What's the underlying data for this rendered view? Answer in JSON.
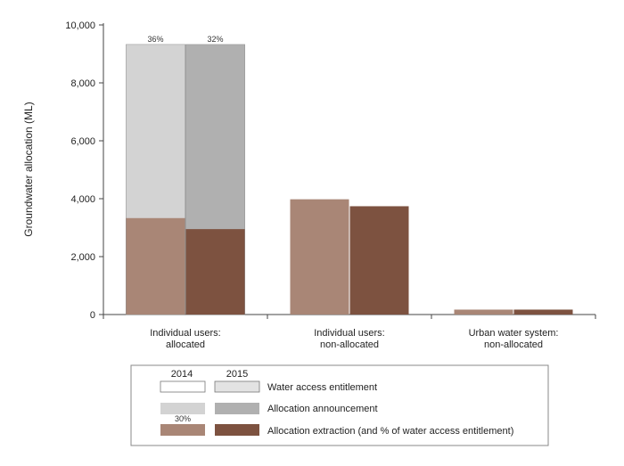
{
  "chart_data": {
    "type": "bar",
    "ylabel": "Groundwater allocation (ML)",
    "ylim": [
      0,
      10000
    ],
    "yticks": [
      0,
      2000,
      4000,
      6000,
      8000,
      10000
    ],
    "ytick_labels": [
      "0",
      "2,000",
      "4,000",
      "6,000",
      "8,000",
      "10,000"
    ],
    "categories": [
      "Individual users:\nallocated",
      "Individual users:\nnon-allocated",
      "Urban water system:\nnon-allocated"
    ],
    "years": [
      "2014",
      "2015"
    ],
    "series": [
      {
        "name": "2014",
        "water_access_entitlement": [
          9320,
          null,
          null
        ],
        "allocation_announcement": [
          9320,
          null,
          null
        ],
        "allocation_extraction": [
          3330,
          3980,
          170
        ],
        "pct_of_entitlement_label": [
          "36%",
          null,
          null
        ]
      },
      {
        "name": "2015",
        "water_access_entitlement": [
          9320,
          null,
          null
        ],
        "allocation_announcement": [
          9320,
          null,
          null
        ],
        "allocation_extraction": [
          2950,
          3740,
          170
        ],
        "pct_of_entitlement_label": [
          "32%",
          null,
          null
        ]
      }
    ],
    "legend": {
      "placement": "bottom",
      "year_headers": [
        "2014",
        "2015"
      ],
      "entries": [
        {
          "label": "Water access entitlement",
          "color_2014": "#ffffff",
          "color_2015": "#e3e3e3"
        },
        {
          "label": "Allocation announcement",
          "color_2014": "#d3d3d3",
          "color_2015": "#b0b0b0"
        },
        {
          "label": "Allocation extraction (and % of water access entitlement)",
          "color_2014": "#a98676",
          "color_2015": "#7d5240",
          "example_pct": "30%"
        }
      ]
    },
    "colors": {
      "entitlement_2014": "#ffffff",
      "entitlement_2015": "#e3e3e3",
      "announcement_2014": "#d3d3d3",
      "announcement_2015": "#b0b0b0",
      "extraction_2014": "#a98676",
      "extraction_2015": "#7d5240",
      "bar_edge": "#777777"
    }
  }
}
